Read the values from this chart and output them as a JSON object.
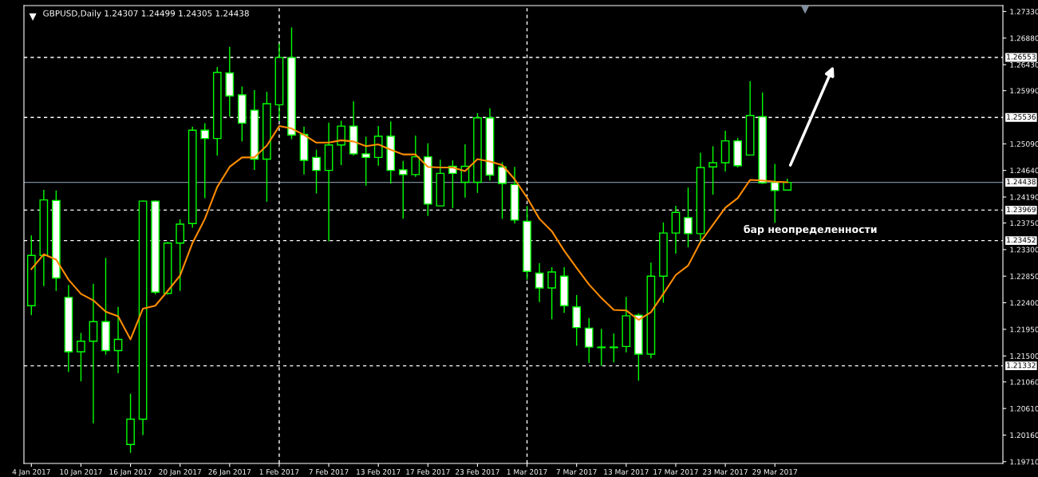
{
  "chart_data": {
    "type": "candlestick",
    "title": "GBPUSD,Daily 1.24307 1.24499 1.24305 1.24438",
    "categories": [
      "4 Jan 2017",
      null,
      null,
      null,
      "10 Jan 2017",
      null,
      null,
      null,
      "16 Jan 2017",
      null,
      null,
      null,
      "20 Jan 2017",
      null,
      null,
      null,
      "26 Jan 2017",
      null,
      null,
      null,
      "1 Feb 2017",
      null,
      null,
      null,
      "7 Feb 2017",
      null,
      null,
      null,
      "13 Feb 2017",
      null,
      null,
      null,
      "17 Feb 2017",
      null,
      null,
      null,
      "23 Feb 2017",
      null,
      null,
      null,
      "1 Mar 2017",
      null,
      null,
      null,
      "7 Mar 2017",
      null,
      null,
      null,
      "13 Mar 2017",
      null,
      null,
      null,
      "17 Mar 2017",
      null,
      null,
      null,
      "23 Mar 2017",
      null,
      null,
      null,
      "29 Mar 2017",
      null,
      null,
      null,
      null,
      null,
      null,
      null,
      null,
      null,
      null,
      null,
      null,
      null,
      null,
      null,
      null,
      null,
      null
    ],
    "color": "#00ff00",
    "ohlc": [
      [
        1.2235,
        1.2354,
        1.2219,
        1.232
      ],
      [
        1.232,
        1.2431,
        1.2268,
        1.2414
      ],
      [
        1.2413,
        1.243,
        1.226,
        1.2282
      ],
      [
        1.2249,
        1.227,
        1.2123,
        1.2157
      ],
      [
        1.2157,
        1.2189,
        1.2107,
        1.2175
      ],
      [
        1.2175,
        1.2272,
        1.2036,
        1.2208
      ],
      [
        1.2208,
        1.2316,
        1.2152,
        1.2159
      ],
      [
        1.2159,
        1.2233,
        1.2121,
        1.2178
      ],
      [
        1.2,
        1.2086,
        1.1986,
        1.2043
      ],
      [
        1.2043,
        1.2413,
        1.2016,
        1.2412
      ],
      [
        1.2412,
        1.2413,
        1.2254,
        1.2258
      ],
      [
        1.2256,
        1.2343,
        1.2254,
        1.2341
      ],
      [
        1.2341,
        1.2381,
        1.226,
        1.2373
      ],
      [
        1.2374,
        1.2538,
        1.2367,
        1.2532
      ],
      [
        1.2532,
        1.2544,
        1.2417,
        1.2518
      ],
      [
        1.2518,
        1.2639,
        1.2489,
        1.263
      ],
      [
        1.2629,
        1.2673,
        1.2555,
        1.259
      ],
      [
        1.2592,
        1.2606,
        1.2513,
        1.2544
      ],
      [
        1.2566,
        1.26,
        1.2465,
        1.2483
      ],
      [
        1.2483,
        1.2597,
        1.2411,
        1.2577
      ],
      [
        1.2575,
        1.2679,
        1.2548,
        1.2655
      ],
      [
        1.2655,
        1.2706,
        1.2517,
        1.2524
      ],
      [
        1.2525,
        1.2538,
        1.2457,
        1.2481
      ],
      [
        1.2486,
        1.2499,
        1.2425,
        1.2464
      ],
      [
        1.2464,
        1.2545,
        1.2344,
        1.2507
      ],
      [
        1.2507,
        1.2548,
        1.2473,
        1.2539
      ],
      [
        1.2539,
        1.2581,
        1.2489,
        1.2492
      ],
      [
        1.2492,
        1.2521,
        1.2438,
        1.2486
      ],
      [
        1.2486,
        1.2539,
        1.2472,
        1.2522
      ],
      [
        1.2522,
        1.2547,
        1.2442,
        1.2464
      ],
      [
        1.2465,
        1.248,
        1.2382,
        1.2457
      ],
      [
        1.2457,
        1.2523,
        1.2453,
        1.2487
      ],
      [
        1.2487,
        1.251,
        1.2387,
        1.2407
      ],
      [
        1.2404,
        1.2482,
        1.2404,
        1.2459
      ],
      [
        1.2471,
        1.2481,
        1.24,
        1.2459
      ],
      [
        1.2444,
        1.2508,
        1.2418,
        1.2471
      ],
      [
        1.2444,
        1.2561,
        1.2426,
        1.2553
      ],
      [
        1.2553,
        1.2569,
        1.2447,
        1.2456
      ],
      [
        1.247,
        1.2478,
        1.2382,
        1.2442
      ],
      [
        1.244,
        1.247,
        1.2374,
        1.238
      ],
      [
        1.2378,
        1.2404,
        1.2279,
        1.2293
      ],
      [
        1.229,
        1.2307,
        1.2241,
        1.2265
      ],
      [
        1.2265,
        1.23,
        1.2212,
        1.2292
      ],
      [
        1.2285,
        1.23,
        1.2223,
        1.2235
      ],
      [
        1.2233,
        1.2253,
        1.2167,
        1.2198
      ],
      [
        1.2197,
        1.2214,
        1.2138,
        1.2165
      ],
      [
        1.2165,
        1.2196,
        1.2133,
        1.2164
      ],
      [
        1.2164,
        1.2188,
        1.2139,
        1.2165
      ],
      [
        1.2166,
        1.225,
        1.2156,
        1.2218
      ],
      [
        1.2219,
        1.2222,
        1.2108,
        1.2153
      ],
      [
        1.2153,
        1.2308,
        1.2146,
        1.2285
      ],
      [
        1.2285,
        1.2376,
        1.224,
        1.2358
      ],
      [
        1.2358,
        1.2404,
        1.2323,
        1.2393
      ],
      [
        1.2384,
        1.2435,
        1.2334,
        1.2357
      ],
      [
        1.2357,
        1.2494,
        1.2343,
        1.2469
      ],
      [
        1.247,
        1.2505,
        1.2423,
        1.2477
      ],
      [
        1.2477,
        1.2531,
        1.2462,
        1.2514
      ],
      [
        1.2514,
        1.2519,
        1.2469,
        1.2472
      ],
      [
        1.249,
        1.2615,
        1.249,
        1.2557
      ],
      [
        1.2555,
        1.2596,
        1.2441,
        1.2443
      ],
      [
        1.2444,
        1.2475,
        1.2375,
        1.243
      ],
      [
        1.24307,
        1.24499,
        1.24305,
        1.24438
      ],
      null,
      null,
      null,
      null,
      null,
      null,
      null,
      null,
      null,
      null,
      null,
      null,
      null,
      null,
      null,
      null,
      null
    ],
    "series": [
      {
        "type": "line",
        "color": "#ff8c00",
        "values": [
          1.2297,
          1.2322,
          1.2313,
          1.2279,
          1.2255,
          1.2244,
          1.2225,
          1.2217,
          1.2178,
          1.223,
          1.2235,
          1.226,
          1.2286,
          1.2341,
          1.2382,
          1.2436,
          1.247,
          1.2486,
          1.2486,
          1.2506,
          1.2539,
          1.2535,
          1.2524,
          1.2511,
          1.2511,
          1.2515,
          1.2513,
          1.2505,
          1.2508,
          1.2499,
          1.2491,
          1.2491,
          1.247,
          1.2469,
          1.2469,
          1.2463,
          1.2483,
          1.2479,
          1.2473,
          1.2449,
          1.2418,
          1.2382,
          1.2361,
          1.2328,
          1.2299,
          1.2271,
          1.2248,
          1.2228,
          1.2227,
          1.2211,
          1.2224,
          1.2255,
          1.2287,
          1.2303,
          1.2343,
          1.2372,
          1.2401,
          1.2417,
          1.2448,
          1.2447,
          1.2445,
          1.2444,
          null,
          null,
          null,
          null,
          null,
          null,
          null,
          null,
          null,
          null,
          null,
          null,
          null,
          null,
          null,
          null,
          null
        ]
      }
    ],
    "ylim": [
      1.1968,
      1.2743
    ],
    "yticks": [
      {
        "value": 1.1971,
        "label": "1.19710"
      },
      {
        "value": 1.2016,
        "label": "1.20160"
      },
      {
        "value": 1.2061,
        "label": "1.20610"
      },
      {
        "value": 1.2106,
        "label": "1.21060"
      },
      {
        "value": 1.215,
        "label": "1.21500"
      },
      {
        "value": 1.2195,
        "label": "1.21950"
      },
      {
        "value": 1.224,
        "label": "1.22400"
      },
      {
        "value": 1.2285,
        "label": "1.22850"
      },
      {
        "value": 1.233,
        "label": "1.23300"
      },
      {
        "value": 1.2375,
        "label": "1.23750"
      },
      {
        "value": 1.2419,
        "label": "1.24190"
      },
      {
        "value": 1.2464,
        "label": "1.24640"
      },
      {
        "value": 1.2509,
        "label": "1.25090"
      },
      {
        "value": 1.2599,
        "label": "1.25990"
      },
      {
        "value": 1.2643,
        "label": "1.26430"
      },
      {
        "value": 1.2688,
        "label": "1.26880"
      },
      {
        "value": 1.2733,
        "label": "1.27330"
      }
    ],
    "ref_lines": [
      {
        "axis": "y",
        "value": 1.26553,
        "label": "1.26553",
        "color": "#ffffff",
        "line_style": "dashed"
      },
      {
        "axis": "y",
        "value": 1.25536,
        "label": "1.25536",
        "color": "#ffffff",
        "line_style": "dashed"
      },
      {
        "axis": "y",
        "value": 1.24438,
        "label": "1.24438",
        "color": "#778899",
        "line_style": "solid"
      },
      {
        "axis": "y",
        "value": 1.23969,
        "label": "1.23969",
        "color": "#ffffff",
        "line_style": "dashed"
      },
      {
        "axis": "y",
        "value": 1.23452,
        "label": "1.23452",
        "color": "#ffffff",
        "line_style": "dashed"
      },
      {
        "axis": "y",
        "value": 1.21332,
        "label": "1.21332",
        "color": "#ffffff",
        "line_style": "dashed"
      },
      {
        "axis": "x",
        "value": "1 Feb 2017",
        "color": "#ffffff",
        "line_style": "dashed"
      },
      {
        "axis": "x",
        "value": "1 Mar 2017",
        "color": "#ffffff",
        "line_style": "dashed"
      }
    ],
    "annotations": [
      "бар неопределенности"
    ]
  }
}
